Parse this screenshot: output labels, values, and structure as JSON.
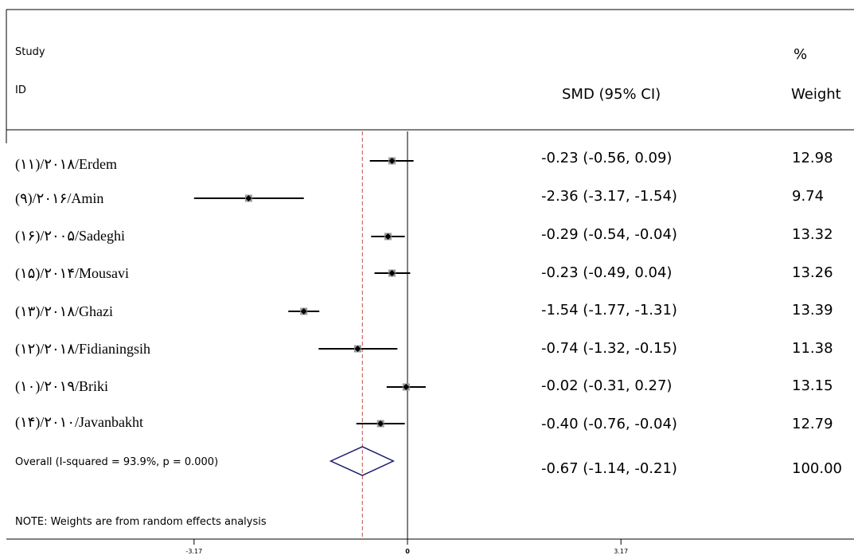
{
  "header": {
    "study_line1": "Study",
    "study_line2": "ID",
    "smd_header": "SMD (95% CI)",
    "weight_line1": "%",
    "weight_line2": "Weight"
  },
  "chart_data": {
    "type": "forest",
    "x_ticks": [
      {
        "value": -3.17,
        "label": "-3.17"
      },
      {
        "value": 0,
        "label": "0"
      },
      {
        "value": 3.17,
        "label": "3.17"
      }
    ],
    "xlim": [
      -3.17,
      3.17
    ],
    "null_line": 0,
    "overall_dashed_line": -0.67,
    "studies": [
      {
        "label": "(۱۱)/۲۰۱۸/Erdem",
        "smd": -0.23,
        "lo": -0.56,
        "hi": 0.09,
        "estimate_text": "-0.23 (-0.56, 0.09)",
        "weight": "12.98"
      },
      {
        "label": "(۹)/۲۰۱۶/Amin",
        "smd": -2.36,
        "lo": -3.17,
        "hi": -1.54,
        "estimate_text": "-2.36 (-3.17, -1.54)",
        "weight": "9.74"
      },
      {
        "label": "(۱۶)/۲۰۰۵/Sadeghi",
        "smd": -0.29,
        "lo": -0.54,
        "hi": -0.04,
        "estimate_text": "-0.29 (-0.54, -0.04)",
        "weight": "13.32"
      },
      {
        "label": "(۱۵)/۲۰۱۴/Mousavi",
        "smd": -0.23,
        "lo": -0.49,
        "hi": 0.04,
        "estimate_text": "-0.23 (-0.49, 0.04)",
        "weight": "13.26"
      },
      {
        "label": "(۱۳)/۲۰۱۸/Ghazi",
        "smd": -1.54,
        "lo": -1.77,
        "hi": -1.31,
        "estimate_text": "-1.54 (-1.77, -1.31)",
        "weight": "13.39"
      },
      {
        "label": "(۱۲)/۲۰۱۸/Fidianingsih",
        "smd": -0.74,
        "lo": -1.32,
        "hi": -0.15,
        "estimate_text": "-0.74 (-1.32, -0.15)",
        "weight": "11.38"
      },
      {
        "label": "(۱۰)/۲۰۱۹/Briki",
        "smd": -0.02,
        "lo": -0.31,
        "hi": 0.27,
        "estimate_text": "-0.02 (-0.31, 0.27)",
        "weight": "13.15"
      },
      {
        "label": "(۱۴)/۲۰۱۰/Javanbakht",
        "smd": -0.4,
        "lo": -0.76,
        "hi": -0.04,
        "estimate_text": "-0.40 (-0.76, -0.04)",
        "weight": "12.79"
      }
    ],
    "overall": {
      "label": "Overall (I-squared = 93.9%, p = 0.000)",
      "smd": -0.67,
      "lo": -1.14,
      "hi": -0.21,
      "estimate_text": "-0.67 (-1.14, -0.21)",
      "weight": "100.00"
    },
    "note": "NOTE: Weights are from random effects analysis",
    "colors": {
      "diamond": "#1a1a6e",
      "dashed_line": "#c0504d",
      "point": "#000000",
      "box": "#9a9a9a"
    }
  }
}
